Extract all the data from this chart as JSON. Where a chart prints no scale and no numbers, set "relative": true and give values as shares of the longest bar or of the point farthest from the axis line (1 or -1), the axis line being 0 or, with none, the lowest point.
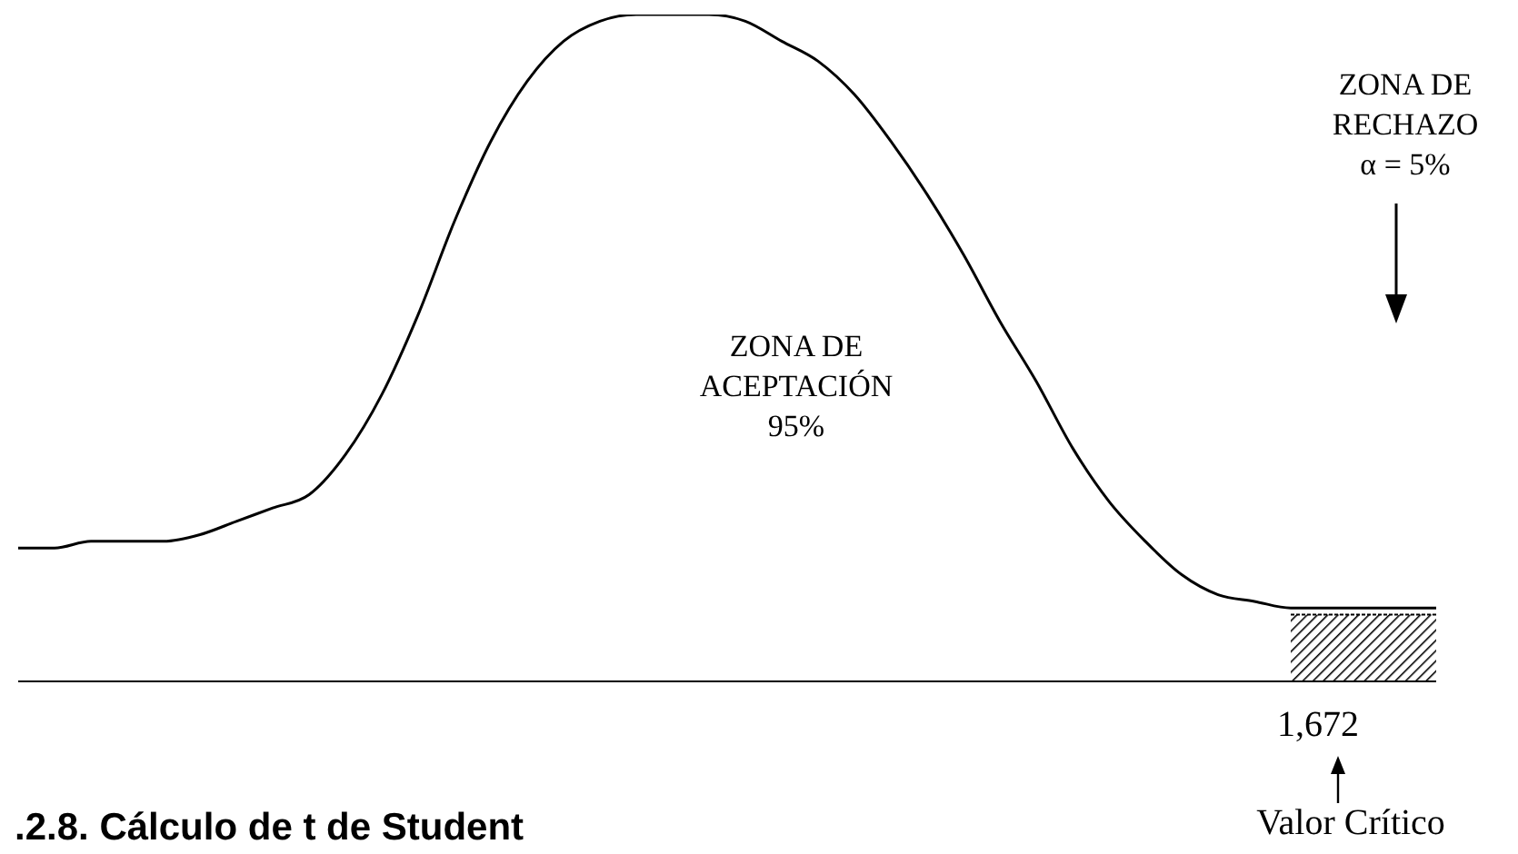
{
  "chart_data": {
    "type": "line",
    "relative": true,
    "marker": "none",
    "categories": [
      null,
      null,
      null,
      null,
      null,
      null,
      null,
      null,
      null,
      null,
      null,
      null,
      null,
      null,
      null,
      null,
      null,
      null,
      null,
      null,
      null,
      null,
      null,
      null,
      null,
      null,
      null,
      null,
      null,
      null,
      null,
      null,
      null,
      null,
      null,
      null,
      null,
      null,
      null,
      null
    ],
    "series": [
      {
        "color": "#000000",
        "values": [
          0.2,
          0.2,
          0.21,
          0.21,
          0.21,
          0.22,
          0.24,
          0.26,
          0.28,
          0.34,
          0.43,
          0.55,
          0.69,
          0.81,
          0.9,
          0.96,
          0.99,
          1,
          1,
          1,
          0.99,
          0.96,
          0.93,
          0.88,
          0.81,
          0.73,
          0.64,
          0.54,
          0.45,
          0.35,
          0.27,
          0.21,
          0.16,
          0.13,
          0.12,
          0.11,
          0.11,
          0.11,
          0.11,
          0.11
        ]
      },
      {
        "type": "area",
        "color": "#000000",
        "values": [
          null,
          null,
          null,
          null,
          null,
          null,
          null,
          null,
          null,
          null,
          null,
          null,
          null,
          null,
          null,
          null,
          null,
          null,
          null,
          null,
          null,
          null,
          null,
          null,
          null,
          null,
          null,
          null,
          null,
          null,
          null,
          null,
          null,
          null,
          null,
          0.1,
          0.1,
          0.1,
          0.1,
          0.1
        ]
      }
    ],
    "annotations": [
      "ZONA DE\nACEPTACIÓN\n95%",
      "ZONA DE\nRECHAZO\nα = 5%",
      "1,672",
      "Valor Crítico",
      ".2.8.   Cálculo de t de Student"
    ]
  }
}
